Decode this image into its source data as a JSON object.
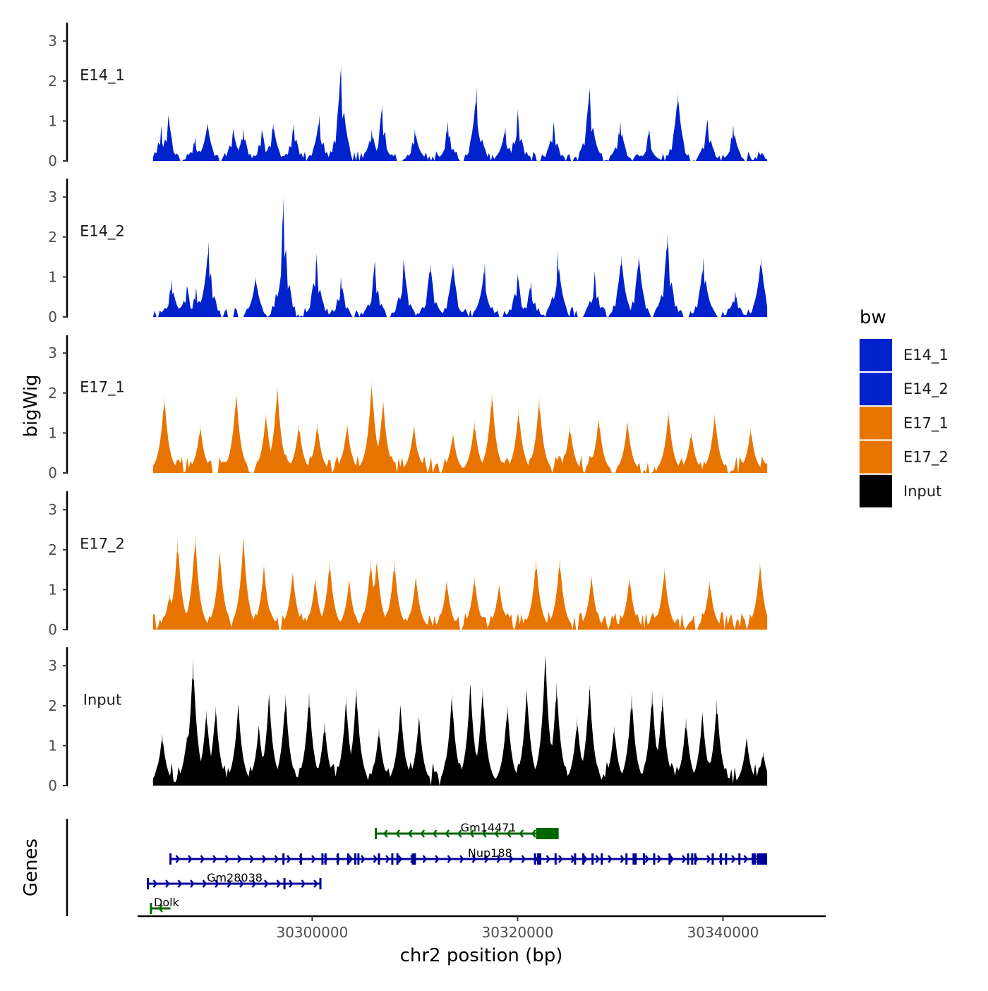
{
  "chart_data": {
    "type": "area",
    "title": "",
    "xlabel": "chr2 position (bp)",
    "ylabel": "bigWig",
    "genes_label": "Genes",
    "xlim": [
      30283000,
      30350000
    ],
    "data_range": [
      30284500,
      30344300
    ],
    "x_ticks": [
      {
        "value": 30300000,
        "label": "30300000"
      },
      {
        "value": 30320000,
        "label": "30320000"
      },
      {
        "value": 30340000,
        "label": "30340000"
      }
    ],
    "ylim": [
      0,
      3.4
    ],
    "y_ticks": [
      {
        "value": 0,
        "label": "0"
      },
      {
        "value": 1,
        "label": "1"
      },
      {
        "value": 2,
        "label": "2"
      },
      {
        "value": 3,
        "label": "3"
      }
    ],
    "legend": {
      "title": "bw",
      "entries": [
        {
          "label": "E14_1",
          "color": "#0022CC"
        },
        {
          "label": "E14_2",
          "color": "#0022CC"
        },
        {
          "label": "E17_1",
          "color": "#E87400"
        },
        {
          "label": "E17_2",
          "color": "#E87400"
        },
        {
          "label": "Input",
          "color": "#000000"
        }
      ]
    },
    "series": [
      {
        "name": "E14_1",
        "color": "#0022CC",
        "peaks": [
          {
            "x": 30285300,
            "y": 0.9
          },
          {
            "x": 30286000,
            "y": 1.15
          },
          {
            "x": 30288600,
            "y": 0.6
          },
          {
            "x": 30289800,
            "y": 0.95
          },
          {
            "x": 30292300,
            "y": 0.8
          },
          {
            "x": 30293300,
            "y": 0.8
          },
          {
            "x": 30295100,
            "y": 0.8
          },
          {
            "x": 30296200,
            "y": 0.95
          },
          {
            "x": 30298200,
            "y": 0.95
          },
          {
            "x": 30300700,
            "y": 1.15
          },
          {
            "x": 30302800,
            "y": 2.4
          },
          {
            "x": 30305800,
            "y": 0.8
          },
          {
            "x": 30306800,
            "y": 1.4
          },
          {
            "x": 30310000,
            "y": 0.8
          },
          {
            "x": 30313200,
            "y": 1.0
          },
          {
            "x": 30316000,
            "y": 1.85
          },
          {
            "x": 30318800,
            "y": 0.85
          },
          {
            "x": 30320000,
            "y": 1.3
          },
          {
            "x": 30323500,
            "y": 1.0
          },
          {
            "x": 30327000,
            "y": 1.85
          },
          {
            "x": 30330000,
            "y": 1.0
          },
          {
            "x": 30332800,
            "y": 0.8
          },
          {
            "x": 30335600,
            "y": 1.7
          },
          {
            "x": 30338500,
            "y": 1.05
          },
          {
            "x": 30341000,
            "y": 0.9
          },
          {
            "x": 30343800,
            "y": 0.2
          }
        ]
      },
      {
        "name": "E14_2",
        "color": "#0022CC",
        "peaks": [
          {
            "x": 30286300,
            "y": 0.95
          },
          {
            "x": 30287800,
            "y": 0.8
          },
          {
            "x": 30288700,
            "y": 0.75
          },
          {
            "x": 30289900,
            "y": 1.9
          },
          {
            "x": 30294500,
            "y": 1.0
          },
          {
            "x": 30297200,
            "y": 3.0
          },
          {
            "x": 30300400,
            "y": 1.6
          },
          {
            "x": 30302800,
            "y": 1.0
          },
          {
            "x": 30306100,
            "y": 1.4
          },
          {
            "x": 30308900,
            "y": 1.45
          },
          {
            "x": 30311500,
            "y": 1.35
          },
          {
            "x": 30313700,
            "y": 1.35
          },
          {
            "x": 30316800,
            "y": 1.35
          },
          {
            "x": 30320000,
            "y": 1.1
          },
          {
            "x": 30321300,
            "y": 0.9
          },
          {
            "x": 30323900,
            "y": 1.65
          },
          {
            "x": 30327500,
            "y": 1.15
          },
          {
            "x": 30330100,
            "y": 1.55
          },
          {
            "x": 30331800,
            "y": 1.55
          },
          {
            "x": 30334600,
            "y": 2.1
          },
          {
            "x": 30338100,
            "y": 1.5
          },
          {
            "x": 30341200,
            "y": 0.65
          },
          {
            "x": 30343700,
            "y": 1.5
          }
        ]
      },
      {
        "name": "E17_1",
        "color": "#E87400",
        "peaks": [
          {
            "x": 30285600,
            "y": 1.95
          },
          {
            "x": 30289100,
            "y": 1.2
          },
          {
            "x": 30292600,
            "y": 2.05
          },
          {
            "x": 30295500,
            "y": 1.5
          },
          {
            "x": 30296600,
            "y": 2.2
          },
          {
            "x": 30298700,
            "y": 1.25
          },
          {
            "x": 30300500,
            "y": 1.25
          },
          {
            "x": 30303400,
            "y": 1.25
          },
          {
            "x": 30305800,
            "y": 2.3
          },
          {
            "x": 30306900,
            "y": 1.85
          },
          {
            "x": 30309900,
            "y": 1.2
          },
          {
            "x": 30313700,
            "y": 1.0
          },
          {
            "x": 30315800,
            "y": 1.3
          },
          {
            "x": 30317500,
            "y": 2.05
          },
          {
            "x": 30320100,
            "y": 1.6
          },
          {
            "x": 30322100,
            "y": 1.9
          },
          {
            "x": 30325100,
            "y": 1.2
          },
          {
            "x": 30327900,
            "y": 1.4
          },
          {
            "x": 30330700,
            "y": 1.3
          },
          {
            "x": 30334700,
            "y": 1.55
          },
          {
            "x": 30336900,
            "y": 1.05
          },
          {
            "x": 30339200,
            "y": 1.5
          },
          {
            "x": 30342700,
            "y": 1.15
          }
        ]
      },
      {
        "name": "E17_2",
        "color": "#E87400",
        "peaks": [
          {
            "x": 30286100,
            "y": 0.9
          },
          {
            "x": 30286900,
            "y": 2.3
          },
          {
            "x": 30288600,
            "y": 2.4
          },
          {
            "x": 30291000,
            "y": 2.0
          },
          {
            "x": 30293300,
            "y": 2.3
          },
          {
            "x": 30295300,
            "y": 1.6
          },
          {
            "x": 30298100,
            "y": 1.45
          },
          {
            "x": 30300300,
            "y": 1.3
          },
          {
            "x": 30301700,
            "y": 1.75
          },
          {
            "x": 30303600,
            "y": 1.25
          },
          {
            "x": 30305700,
            "y": 1.75
          },
          {
            "x": 30306300,
            "y": 1.8
          },
          {
            "x": 30308000,
            "y": 1.75
          },
          {
            "x": 30310100,
            "y": 1.35
          },
          {
            "x": 30313100,
            "y": 1.25
          },
          {
            "x": 30315800,
            "y": 1.35
          },
          {
            "x": 30318200,
            "y": 1.15
          },
          {
            "x": 30321800,
            "y": 1.8
          },
          {
            "x": 30324100,
            "y": 1.8
          },
          {
            "x": 30327200,
            "y": 1.35
          },
          {
            "x": 30330900,
            "y": 1.35
          },
          {
            "x": 30334300,
            "y": 1.55
          },
          {
            "x": 30338700,
            "y": 1.25
          },
          {
            "x": 30343600,
            "y": 1.7
          }
        ]
      },
      {
        "name": "Input",
        "color": "#000000",
        "peaks": [
          {
            "x": 30285400,
            "y": 1.3
          },
          {
            "x": 30287800,
            "y": 1.25
          },
          {
            "x": 30288400,
            "y": 3.2
          },
          {
            "x": 30289700,
            "y": 1.9
          },
          {
            "x": 30290600,
            "y": 2.0
          },
          {
            "x": 30292800,
            "y": 2.05
          },
          {
            "x": 30294800,
            "y": 1.5
          },
          {
            "x": 30295800,
            "y": 2.3
          },
          {
            "x": 30297400,
            "y": 2.3
          },
          {
            "x": 30299700,
            "y": 2.35
          },
          {
            "x": 30301200,
            "y": 1.6
          },
          {
            "x": 30303300,
            "y": 2.2
          },
          {
            "x": 30304300,
            "y": 2.45
          },
          {
            "x": 30306500,
            "y": 1.45
          },
          {
            "x": 30308600,
            "y": 2.05
          },
          {
            "x": 30310400,
            "y": 1.75
          },
          {
            "x": 30313600,
            "y": 2.3
          },
          {
            "x": 30315400,
            "y": 2.55
          },
          {
            "x": 30316600,
            "y": 2.45
          },
          {
            "x": 30319000,
            "y": 2.05
          },
          {
            "x": 30320900,
            "y": 2.45
          },
          {
            "x": 30322700,
            "y": 3.3
          },
          {
            "x": 30323800,
            "y": 2.6
          },
          {
            "x": 30325800,
            "y": 1.7
          },
          {
            "x": 30327000,
            "y": 2.55
          },
          {
            "x": 30329400,
            "y": 1.5
          },
          {
            "x": 30331100,
            "y": 2.3
          },
          {
            "x": 30333100,
            "y": 2.4
          },
          {
            "x": 30334100,
            "y": 2.3
          },
          {
            "x": 30336400,
            "y": 1.7
          },
          {
            "x": 30338000,
            "y": 1.85
          },
          {
            "x": 30339400,
            "y": 2.15
          },
          {
            "x": 30342300,
            "y": 1.2
          },
          {
            "x": 30343900,
            "y": 0.85
          }
        ]
      }
    ],
    "genes": [
      {
        "name": "Gm14471",
        "color": "#006600",
        "strand": "-",
        "start": 30306200,
        "end": 30324000,
        "thick_start": 30321900,
        "thick_end": 30324000,
        "row": 0,
        "exons": [
          30306200,
          30321900
        ]
      },
      {
        "name": "Nup188",
        "color": "#000099",
        "strand": "+",
        "start": 30286200,
        "end": 30344300,
        "thick_start": 30343300,
        "thick_end": 30344300,
        "row": 1,
        "exons": [
          30286200,
          30297200,
          30298900,
          30301000,
          30301300,
          30302500,
          30303500,
          30304200,
          30304500,
          30306500,
          30307800,
          30308300,
          30309800,
          30310000,
          30321700,
          30322000,
          30322200,
          30323700,
          30325600,
          30326400,
          30327300,
          30328200,
          30330600,
          30331300,
          30331500,
          30332300,
          30333300,
          30334800,
          30336600,
          30337000,
          30337300,
          30339000,
          30339800,
          30340300,
          30341600,
          30342900,
          30343100
        ]
      },
      {
        "name": "Gm28038",
        "color": "#000099",
        "strand": "+",
        "start": 30284000,
        "end": 30300900,
        "thick_start": 30300900,
        "thick_end": 30300900,
        "row": 2,
        "exons": [
          30284000,
          30297300,
          30300800
        ]
      },
      {
        "name": "Dolk",
        "color": "#006600",
        "strand": "-",
        "start": 30284300,
        "end": 30286200,
        "thick_start": 30286200,
        "thick_end": 30286200,
        "row": 3,
        "exons": [
          30284300
        ]
      }
    ]
  }
}
